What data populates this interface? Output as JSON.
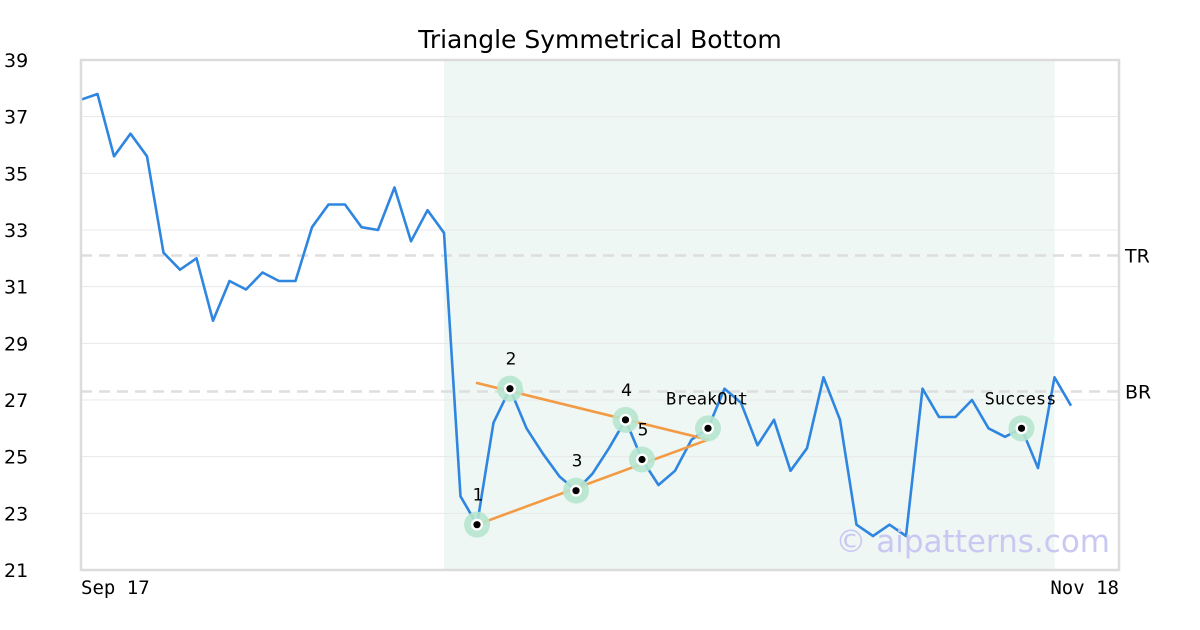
{
  "chart_data": {
    "type": "line",
    "title": "Triangle Symmetrical Bottom",
    "watermark": "© aipatterns.com",
    "x_labels": {
      "start": "Sep 17",
      "end": "Nov 18"
    },
    "ylim": [
      21,
      39
    ],
    "yticks": [
      21,
      23,
      25,
      27,
      29,
      31,
      33,
      35,
      37,
      39
    ],
    "grid": true,
    "series": [
      {
        "color": "#2f86e0",
        "values": [
          37.6,
          37.8,
          35.6,
          36.4,
          35.6,
          32.2,
          31.6,
          32.0,
          29.8,
          31.2,
          30.9,
          31.5,
          31.2,
          31.2,
          33.1,
          33.9,
          33.9,
          33.1,
          33.0,
          34.5,
          32.6,
          33.7,
          32.9,
          23.6,
          22.6,
          26.2,
          27.4,
          26.0,
          25.1,
          24.3,
          23.8,
          24.4,
          25.3,
          26.3,
          24.9,
          24.0,
          24.5,
          25.6,
          26.0,
          27.4,
          26.9,
          25.4,
          26.3,
          24.5,
          25.3,
          27.8,
          26.3,
          22.6,
          22.2,
          22.6,
          22.2,
          27.4,
          26.4,
          26.4,
          27.0,
          26.0,
          25.7,
          26.0,
          24.6,
          27.8,
          26.8
        ]
      }
    ],
    "levels": [
      {
        "label": "TR",
        "value": 32.1
      },
      {
        "label": "BR",
        "value": 27.3
      }
    ],
    "pattern_region": {
      "start_index": 22,
      "end_index": 59,
      "color": "#eef7f3"
    },
    "pattern_points": [
      {
        "label": "1",
        "index": 24,
        "value": 22.6
      },
      {
        "label": "2",
        "index": 26,
        "value": 27.4
      },
      {
        "label": "3",
        "index": 30,
        "value": 23.8
      },
      {
        "label": "4",
        "index": 33,
        "value": 26.3
      },
      {
        "label": "5",
        "index": 34,
        "value": 24.9
      },
      {
        "label": "BreakOut",
        "index": 38,
        "value": 26.0
      },
      {
        "label": "Success",
        "index": 57,
        "value": 26.0
      }
    ],
    "trendlines": {
      "color": "#f39a45",
      "upper": {
        "from": {
          "index": 24,
          "value": 27.6
        },
        "to": {
          "index": 38,
          "value": 25.6
        }
      },
      "lower": {
        "from": {
          "index": 24,
          "value": 22.6
        },
        "to": {
          "index": 38,
          "value": 25.6
        }
      }
    }
  }
}
